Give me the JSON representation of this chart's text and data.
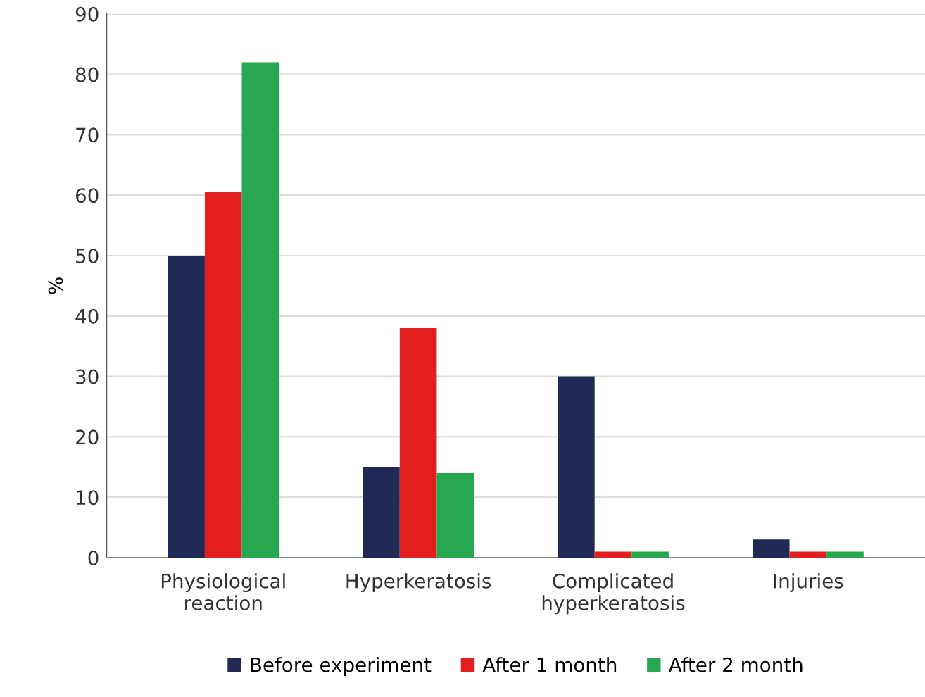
{
  "chart_data": {
    "type": "bar",
    "ylabel": "%",
    "categories": [
      "Physiological\nreaction",
      "Hyperkeratosis",
      "Complicated\nhyperkeratosis",
      "Injuries"
    ],
    "series": [
      {
        "name": "Before experiment",
        "color": "#202a54",
        "values": [
          50,
          15,
          30,
          3
        ]
      },
      {
        "name": "After 1 month",
        "color": "#e31e1e",
        "values": [
          60.5,
          38,
          1,
          1
        ]
      },
      {
        "name": "After 2 month",
        "color": "#27a74f",
        "values": [
          82,
          14,
          1,
          1
        ]
      }
    ],
    "ylim": [
      0,
      90
    ],
    "yticks": [
      0,
      10,
      20,
      30,
      40,
      50,
      60,
      70,
      80,
      90
    ],
    "grid": "y",
    "legend": "bottom"
  }
}
